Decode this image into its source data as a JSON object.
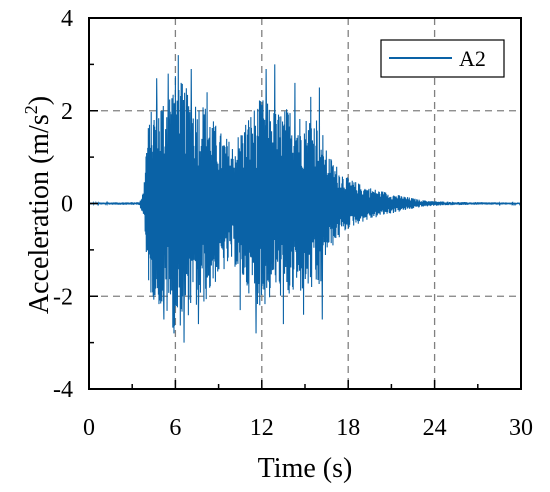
{
  "chart_data": {
    "type": "line",
    "title": "",
    "xlabel": "Time (s)",
    "ylabel_main": "Acceleration (m/s",
    "ylabel_sup": "2",
    "ylabel_close": ")",
    "xlim": [
      0,
      30
    ],
    "ylim": [
      -4,
      4
    ],
    "xticks": [
      0,
      6,
      12,
      18,
      24,
      30
    ],
    "xtick_labels": [
      "0",
      "6",
      "12",
      "18",
      "24",
      "30"
    ],
    "yticks": [
      -4,
      -2,
      0,
      2,
      4
    ],
    "ytick_labels": [
      "-4",
      "-2",
      "0",
      "2",
      "4"
    ],
    "grid": true,
    "grid_style": "dashed",
    "legend_position": "top-right",
    "series": [
      {
        "name": "A2",
        "color": "#0a62a6",
        "sample_step_s": 0.01,
        "envelope_note": "dense oscillatory record; amplitude envelope in m/s^2 over time",
        "envelope": [
          [
            0.0,
            0.02
          ],
          [
            3.5,
            0.03
          ],
          [
            3.8,
            0.3
          ],
          [
            4.0,
            1.5
          ],
          [
            4.3,
            2.0
          ],
          [
            5.0,
            2.3
          ],
          [
            5.5,
            2.5
          ],
          [
            6.0,
            2.8
          ],
          [
            7.0,
            2.4
          ],
          [
            8.0,
            2.2
          ],
          [
            9.0,
            1.6
          ],
          [
            10.0,
            1.3
          ],
          [
            11.0,
            1.9
          ],
          [
            12.0,
            2.3
          ],
          [
            13.0,
            2.0
          ],
          [
            14.0,
            2.1
          ],
          [
            15.0,
            1.9
          ],
          [
            16.0,
            2.0
          ],
          [
            16.4,
            1.2
          ],
          [
            17.0,
            0.9
          ],
          [
            18.0,
            0.55
          ],
          [
            19.0,
            0.4
          ],
          [
            20.0,
            0.3
          ],
          [
            21.0,
            0.22
          ],
          [
            22.0,
            0.15
          ],
          [
            23.0,
            0.08
          ],
          [
            24.0,
            0.05
          ],
          [
            26.0,
            0.03
          ],
          [
            30.0,
            0.02
          ]
        ],
        "peaks": [
          [
            4.7,
            2.7
          ],
          [
            5.2,
            -2.5
          ],
          [
            5.5,
            2.8
          ],
          [
            5.9,
            -2.8
          ],
          [
            6.2,
            3.2
          ],
          [
            6.6,
            -3.0
          ],
          [
            7.1,
            2.9
          ],
          [
            7.6,
            -2.6
          ],
          [
            8.2,
            2.4
          ],
          [
            10.5,
            -2.3
          ],
          [
            11.6,
            -2.8
          ],
          [
            12.3,
            2.9
          ],
          [
            12.9,
            3.0
          ],
          [
            13.5,
            -2.6
          ],
          [
            14.3,
            2.6
          ],
          [
            14.9,
            -2.4
          ],
          [
            15.4,
            2.3
          ],
          [
            16.0,
            2.5
          ],
          [
            16.2,
            -2.5
          ]
        ]
      }
    ]
  }
}
